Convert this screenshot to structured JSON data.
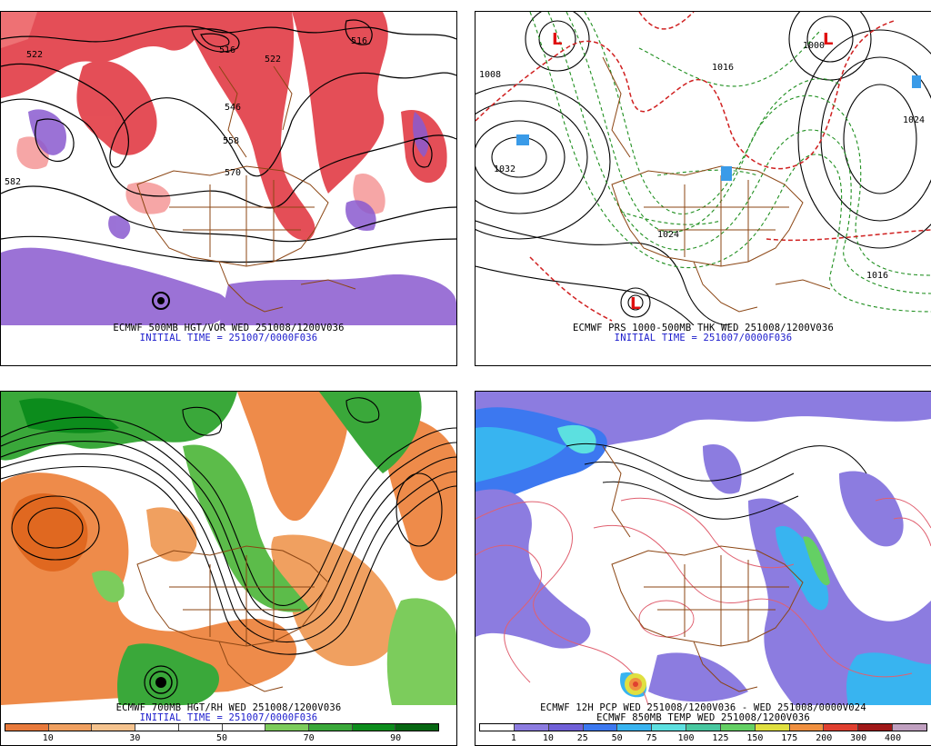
{
  "panels": {
    "p1": {
      "caption1": "ECMWF 500MB HGT/VOR WED 251008/1200V036",
      "caption2": "INITIAL TIME = 251007/0000F036",
      "labels": [
        "522",
        "516",
        "546",
        "558",
        "570",
        "582",
        "522",
        "516"
      ]
    },
    "p2": {
      "caption1": "ECMWF PRS 1000-500MB THK WED 251008/1200V036",
      "caption2": "INITIAL TIME = 251007/0000F036",
      "labels": [
        "1032",
        "1024",
        "1016",
        "1008",
        "1024",
        "1016",
        "1000"
      ],
      "lows": [
        "L",
        "L",
        "L"
      ]
    },
    "p3": {
      "caption1": "ECMWF 700MB HGT/RH WED 251008/1200V036",
      "caption2": "INITIAL TIME = 251007/0000F036",
      "colorbar_ticks": [
        "10",
        "30",
        "50",
        "70",
        "90"
      ],
      "colorbar_colors": [
        "#e87a3c",
        "#f0a060",
        "#f5c38e",
        "#ffffff",
        "#ffffff",
        "#ffffff",
        "#7ccc5c",
        "#3aa83a",
        "#0c8c1c",
        "#066612"
      ]
    },
    "p4": {
      "caption1": "ECMWF 12H PCP WED 251008/1200V036 - WED 251008/0000V024",
      "caption2": "ECMWF 850MB TEMP WED 251008/1200V036",
      "colorbar_ticks": [
        "1",
        "10",
        "25",
        "50",
        "75",
        "100",
        "125",
        "150",
        "175",
        "200",
        "300",
        "400"
      ],
      "colorbar_colors": [
        "#ffffff",
        "#8c7ce0",
        "#7060d8",
        "#3c78f0",
        "#38b4f0",
        "#5ce0e0",
        "#48c8a0",
        "#64d064",
        "#e0e040",
        "#f09040",
        "#e04030",
        "#a01818",
        "#c0a0c0"
      ]
    }
  }
}
